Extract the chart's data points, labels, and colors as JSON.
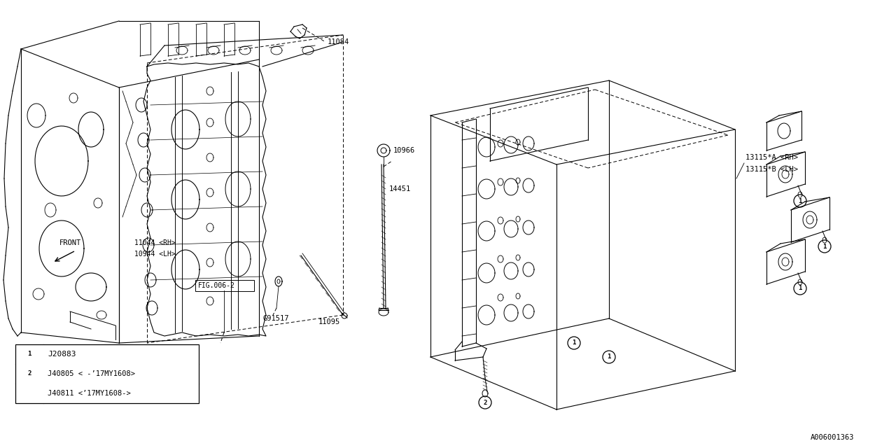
{
  "bg_color": "#ffffff",
  "line_color": "#000000",
  "fig_width": 12.8,
  "fig_height": 6.4,
  "footer_id": "A006001363",
  "legend_row1": "J20883",
  "legend_row2a": "J40805 < -’17MY1608>",
  "legend_row2b": "J40811 <’17MY1608->",
  "label_11084": "11084",
  "label_10966": "10966",
  "label_14451": "14451",
  "label_11095": "11095",
  "label_11044": "11044 <RH>",
  "label_10944": "10944 <LH>",
  "label_fig": "FIG.006-2",
  "label_G91517": "G91517",
  "label_13115a": "13115*A <RH>",
  "label_13115b": "13115*B <LH>",
  "label_front": "FRONT"
}
